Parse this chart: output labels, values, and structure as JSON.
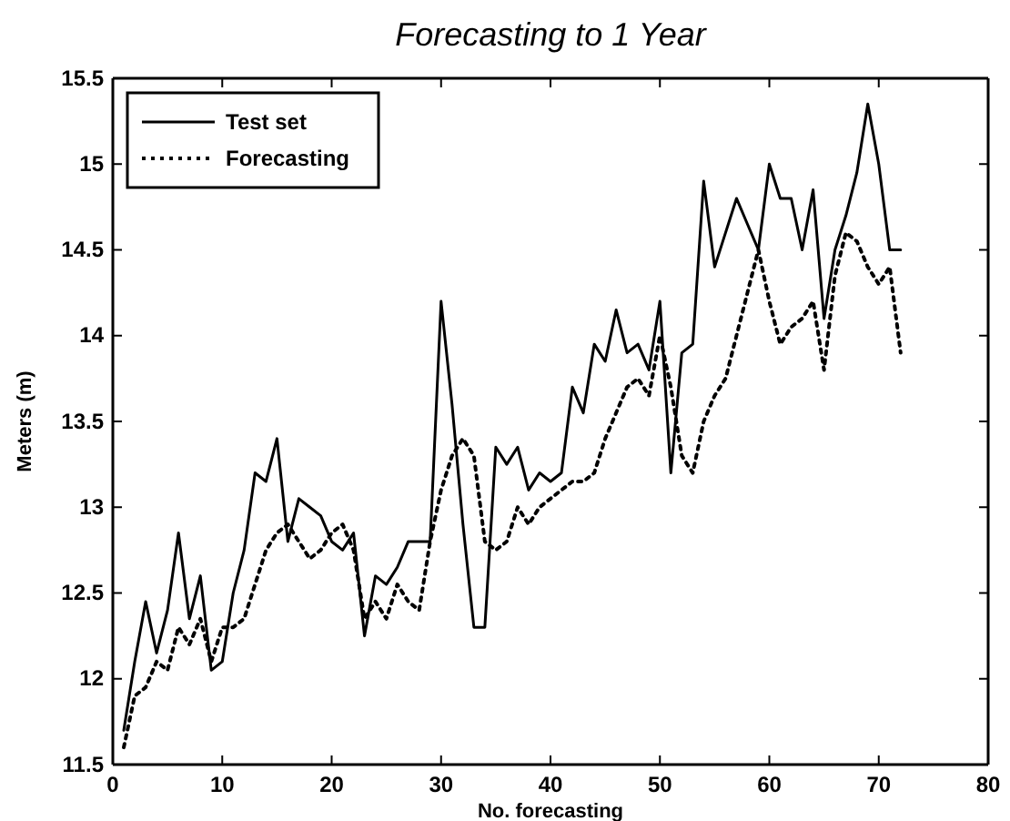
{
  "chart_data": {
    "type": "line",
    "title": "Forecasting to 1 Year",
    "xlabel": "No. forecasting",
    "ylabel": "Meters (m)",
    "x": [
      1,
      2,
      3,
      4,
      5,
      6,
      7,
      8,
      9,
      10,
      11,
      12,
      13,
      14,
      15,
      16,
      17,
      18,
      19,
      20,
      21,
      22,
      23,
      24,
      25,
      26,
      27,
      28,
      29,
      30,
      31,
      32,
      33,
      34,
      35,
      36,
      37,
      38,
      39,
      40,
      41,
      42,
      43,
      44,
      45,
      46,
      47,
      48,
      49,
      50,
      51,
      52,
      53,
      54,
      55,
      56,
      57,
      58,
      59,
      60,
      61,
      62,
      63,
      64,
      65,
      66,
      67,
      68,
      69,
      70,
      71,
      72
    ],
    "series": [
      {
        "name": "Test set",
        "color": "#000000",
        "line_style": "solid",
        "values": [
          11.7,
          12.1,
          12.45,
          12.15,
          12.4,
          12.85,
          12.35,
          12.6,
          12.05,
          12.1,
          12.5,
          12.75,
          13.2,
          13.15,
          13.4,
          12.8,
          13.05,
          13.0,
          12.95,
          12.8,
          12.75,
          12.85,
          12.25,
          12.6,
          12.55,
          12.65,
          12.8,
          12.8,
          12.8,
          14.2,
          13.6,
          12.9,
          12.3,
          12.3,
          13.35,
          13.25,
          13.35,
          13.1,
          13.2,
          13.15,
          13.2,
          13.7,
          13.55,
          13.95,
          13.85,
          14.15,
          13.9,
          13.95,
          13.8,
          14.2,
          13.2,
          13.9,
          13.95,
          14.9,
          14.4,
          14.6,
          14.8,
          14.65,
          14.5,
          15.0,
          14.8,
          14.8,
          14.5,
          14.85,
          14.1,
          14.5,
          14.7,
          14.95,
          15.35,
          15.0,
          14.5,
          14.5
        ]
      },
      {
        "name": "Forecasting",
        "color": "#000000",
        "line_style": "dotted",
        "values": [
          11.6,
          11.9,
          11.95,
          12.1,
          12.05,
          12.3,
          12.2,
          12.35,
          12.1,
          12.3,
          12.3,
          12.35,
          12.55,
          12.75,
          12.85,
          12.9,
          12.8,
          12.7,
          12.75,
          12.85,
          12.9,
          12.75,
          12.35,
          12.45,
          12.35,
          12.55,
          12.45,
          12.4,
          12.8,
          13.1,
          13.3,
          13.4,
          13.3,
          12.8,
          12.75,
          12.8,
          13.0,
          12.9,
          13.0,
          13.05,
          13.1,
          13.15,
          13.15,
          13.2,
          13.4,
          13.55,
          13.7,
          13.75,
          13.65,
          14.0,
          13.7,
          13.3,
          13.2,
          13.5,
          13.65,
          13.75,
          14.0,
          14.25,
          14.5,
          14.2,
          13.95,
          14.05,
          14.1,
          14.2,
          13.8,
          14.35,
          14.6,
          14.55,
          14.4,
          14.3,
          14.4,
          13.9
        ]
      }
    ],
    "xlim": [
      0,
      80
    ],
    "xticks": [
      0,
      10,
      20,
      30,
      40,
      50,
      60,
      70,
      80
    ],
    "ylim": [
      11.5,
      15.5
    ],
    "yticks": [
      11.5,
      12,
      12.5,
      13,
      13.5,
      14,
      14.5,
      15,
      15.5
    ],
    "legend": "top left",
    "grid": false
  }
}
